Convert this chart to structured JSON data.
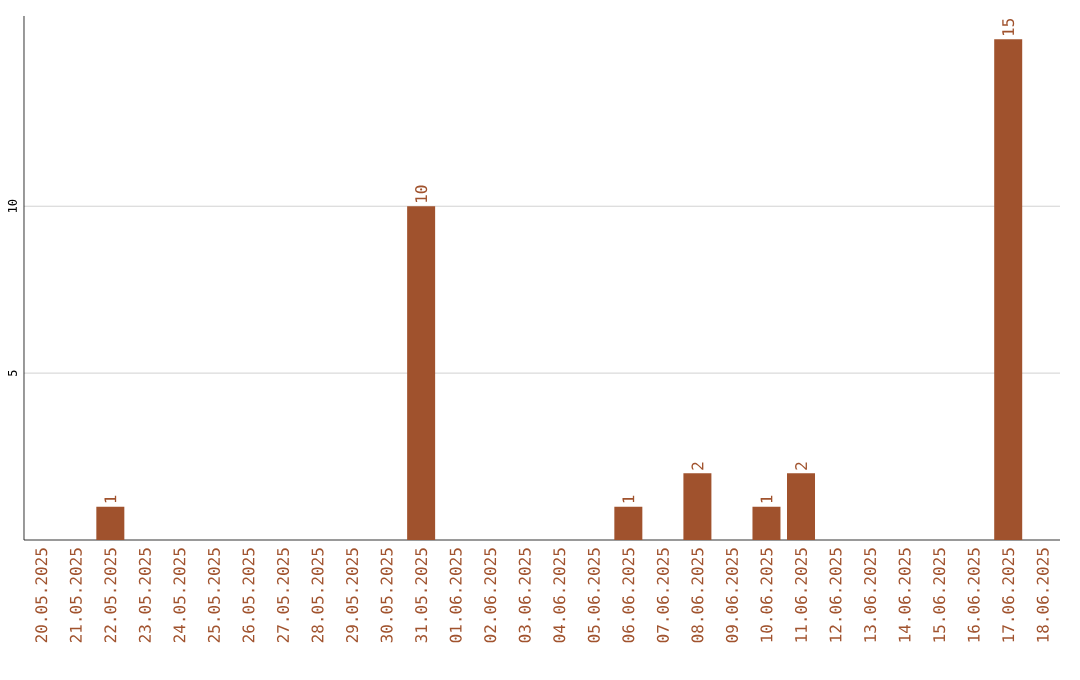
{
  "chart_data": {
    "type": "bar",
    "categories": [
      "20.05.2025",
      "21.05.2025",
      "22.05.2025",
      "23.05.2025",
      "24.05.2025",
      "25.05.2025",
      "26.05.2025",
      "27.05.2025",
      "28.05.2025",
      "29.05.2025",
      "30.05.2025",
      "31.05.2025",
      "01.06.2025",
      "02.06.2025",
      "03.06.2025",
      "04.06.2025",
      "05.06.2025",
      "06.06.2025",
      "07.06.2025",
      "08.06.2025",
      "09.06.2025",
      "10.06.2025",
      "11.06.2025",
      "12.06.2025",
      "13.06.2025",
      "14.06.2025",
      "15.06.2025",
      "16.06.2025",
      "17.06.2025",
      "18.06.2025"
    ],
    "values": [
      0,
      0,
      1,
      0,
      0,
      0,
      0,
      0,
      0,
      0,
      0,
      10,
      0,
      0,
      0,
      0,
      0,
      1,
      0,
      2,
      0,
      1,
      2,
      0,
      0,
      0,
      0,
      0,
      15,
      0
    ],
    "value_labels": [
      null,
      null,
      "1",
      null,
      null,
      null,
      null,
      null,
      null,
      null,
      null,
      "10",
      null,
      null,
      null,
      null,
      null,
      "1",
      null,
      "2",
      null,
      "1",
      "2",
      null,
      null,
      null,
      null,
      null,
      "15",
      null
    ],
    "color": "#a0522d",
    "ylim": [
      0,
      15.7
    ],
    "yticks": [
      5,
      10
    ],
    "grid": "y"
  }
}
